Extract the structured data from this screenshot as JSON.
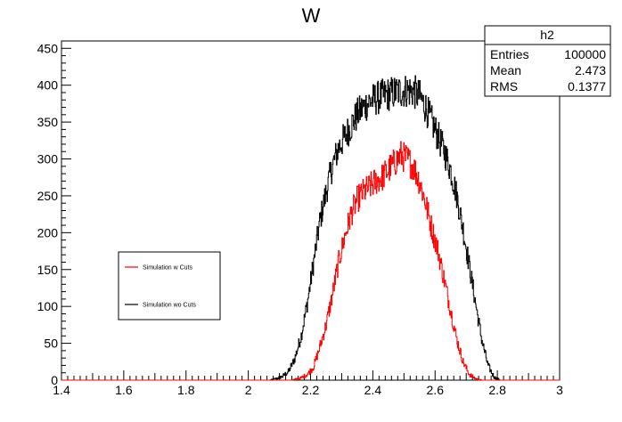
{
  "chart_data": {
    "type": "histogram",
    "title": "W",
    "xlabel": "",
    "ylabel": "",
    "xlim": [
      1.4,
      3.0
    ],
    "ylim": [
      0,
      460
    ],
    "x_ticks": [
      "1.4",
      "1.6",
      "1.8",
      "2",
      "2.2",
      "2.4",
      "2.6",
      "2.8",
      "3"
    ],
    "y_ticks": [
      "0",
      "50",
      "100",
      "150",
      "200",
      "250",
      "300",
      "350",
      "400",
      "450"
    ],
    "grid": false,
    "legend_position": "left-middle",
    "series": [
      {
        "name": "Simulation w Cuts",
        "color": "#ff0000",
        "points": [
          [
            1.4,
            0
          ],
          [
            2.14,
            0
          ],
          [
            2.17,
            3
          ],
          [
            2.19,
            8
          ],
          [
            2.21,
            18
          ],
          [
            2.23,
            45
          ],
          [
            2.25,
            75
          ],
          [
            2.27,
            115
          ],
          [
            2.29,
            160
          ],
          [
            2.31,
            195
          ],
          [
            2.33,
            225
          ],
          [
            2.35,
            245
          ],
          [
            2.37,
            255
          ],
          [
            2.39,
            262
          ],
          [
            2.41,
            270
          ],
          [
            2.43,
            275
          ],
          [
            2.45,
            285
          ],
          [
            2.47,
            295
          ],
          [
            2.49,
            305
          ],
          [
            2.51,
            300
          ],
          [
            2.53,
            290
          ],
          [
            2.55,
            270
          ],
          [
            2.57,
            240
          ],
          [
            2.59,
            205
          ],
          [
            2.61,
            175
          ],
          [
            2.63,
            135
          ],
          [
            2.65,
            95
          ],
          [
            2.67,
            55
          ],
          [
            2.69,
            25
          ],
          [
            2.71,
            8
          ],
          [
            2.73,
            2
          ],
          [
            2.75,
            0
          ],
          [
            3.0,
            0
          ]
        ]
      },
      {
        "name": "Simulation wo Cuts",
        "color": "#000000",
        "points": [
          [
            1.4,
            0
          ],
          [
            2.07,
            0
          ],
          [
            2.09,
            2
          ],
          [
            2.11,
            5
          ],
          [
            2.13,
            12
          ],
          [
            2.15,
            30
          ],
          [
            2.17,
            60
          ],
          [
            2.19,
            105
          ],
          [
            2.21,
            160
          ],
          [
            2.23,
            215
          ],
          [
            2.25,
            255
          ],
          [
            2.27,
            290
          ],
          [
            2.29,
            315
          ],
          [
            2.31,
            330
          ],
          [
            2.33,
            345
          ],
          [
            2.35,
            360
          ],
          [
            2.37,
            370
          ],
          [
            2.39,
            378
          ],
          [
            2.41,
            382
          ],
          [
            2.43,
            385
          ],
          [
            2.45,
            388
          ],
          [
            2.47,
            390
          ],
          [
            2.49,
            392
          ],
          [
            2.51,
            393
          ],
          [
            2.53,
            392
          ],
          [
            2.55,
            385
          ],
          [
            2.57,
            370
          ],
          [
            2.59,
            350
          ],
          [
            2.61,
            330
          ],
          [
            2.63,
            310
          ],
          [
            2.65,
            285
          ],
          [
            2.67,
            250
          ],
          [
            2.69,
            205
          ],
          [
            2.71,
            155
          ],
          [
            2.73,
            105
          ],
          [
            2.75,
            55
          ],
          [
            2.77,
            20
          ],
          [
            2.79,
            4
          ],
          [
            2.81,
            0
          ],
          [
            3.0,
            0
          ]
        ]
      }
    ],
    "stats_box": {
      "name": "h2",
      "rows": [
        {
          "label": "Entries",
          "value": "100000"
        },
        {
          "label": "Mean",
          "value": "2.473"
        },
        {
          "label": "RMS",
          "value": "0.1377"
        }
      ]
    }
  }
}
